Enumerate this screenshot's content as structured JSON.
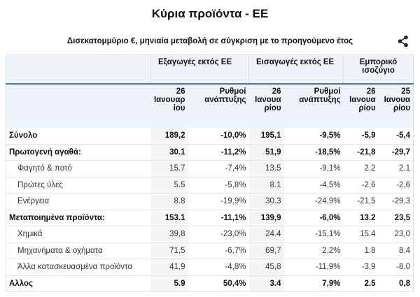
{
  "header": {
    "title": "Κύρια προϊόντα - ΕΕ",
    "subtitle": "Δισεκατομμύριο €, μηνιαία μεταβολή σε σύγκριση με το προηγούμενο έτος"
  },
  "table": {
    "groups": [
      "Εξαγωγές εκτός ΕΕ",
      "Εισαγωγές εκτός ΕΕ",
      "Εμπορικό ισοζύγιο"
    ],
    "columns": [
      "26 Ιανουαρίου",
      "Ρυθμοί ανάπτυξης",
      "26 Ιανουαρίου",
      "Ρυθμοί ανάπτυξης",
      "26 Ιανουαρίου",
      "25 Ιανουαρίου"
    ],
    "rows": [
      {
        "bold": true,
        "cells": [
          "Σύνολο",
          "189,2",
          "-10,0%",
          "195,1",
          "-9,5%",
          "-5,9",
          "-5,4"
        ]
      },
      {
        "bold": true,
        "cells": [
          "Πρωτογενή αγαθά:",
          "30.1",
          "-11,2%",
          "51,9",
          "-18,5%",
          "-21,8",
          "-29,7"
        ]
      },
      {
        "bold": false,
        "cells": [
          "Φαγητό & ποτό",
          "15.7",
          "-7,4%",
          "13.5",
          "-9,1%",
          "2.2",
          "2.1"
        ]
      },
      {
        "bold": false,
        "cells": [
          "Πρώτες ύλες",
          "5.5",
          "-5,8%",
          "8.1",
          "-4,5%",
          "-2,6",
          "-2,6"
        ]
      },
      {
        "bold": false,
        "cells": [
          "Ενέργεια",
          "8.8",
          "-19,9%",
          "30.3",
          "-24,9%",
          "-21,5",
          "-29,3"
        ]
      },
      {
        "bold": true,
        "cells": [
          "Μεταποιημένα προϊόντα:",
          "153.1",
          "-11,1%",
          "139,9",
          "-6,0%",
          "13.2",
          "23,5"
        ]
      },
      {
        "bold": false,
        "cells": [
          "Χημικά",
          "39,8",
          "-23,0%",
          "24.4",
          "-15,1%",
          "15.4",
          "23,0"
        ]
      },
      {
        "bold": false,
        "cells": [
          "Μηχανήματα & οχήματα",
          "71,5",
          "-6,7%",
          "69,7",
          "2,2%",
          "1.8",
          "8.4"
        ]
      },
      {
        "bold": false,
        "cells": [
          "Άλλα κατασκευασμένα προϊόντα",
          "41,9",
          "-4,8%",
          "45,8",
          "-11,9%",
          "-3,9",
          "-8,0"
        ]
      },
      {
        "bold": true,
        "cells": [
          "Αλλος",
          "5.9",
          "50,4%",
          "3.4",
          "7,9%",
          "2.5",
          "0,8"
        ]
      }
    ]
  }
}
